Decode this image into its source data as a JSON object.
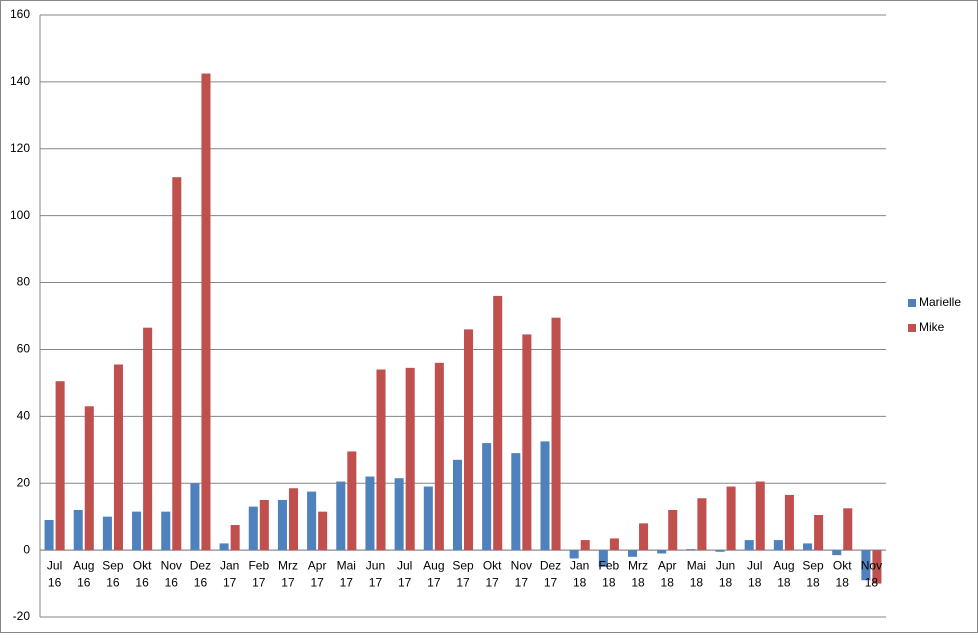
{
  "chart_data": {
    "type": "bar",
    "categories": [
      [
        "Jul",
        "16"
      ],
      [
        "Aug",
        "16"
      ],
      [
        "Sep",
        "16"
      ],
      [
        "Okt",
        "16"
      ],
      [
        "Nov",
        "16"
      ],
      [
        "Dez",
        "16"
      ],
      [
        "Jan",
        "17"
      ],
      [
        "Feb",
        "17"
      ],
      [
        "Mrz",
        "17"
      ],
      [
        "Apr",
        "17"
      ],
      [
        "Mai",
        "17"
      ],
      [
        "Jun",
        "17"
      ],
      [
        "Jul",
        "17"
      ],
      [
        "Aug",
        "17"
      ],
      [
        "Sep",
        "17"
      ],
      [
        "Okt",
        "17"
      ],
      [
        "Nov",
        "17"
      ],
      [
        "Dez",
        "17"
      ],
      [
        "Jan",
        "18"
      ],
      [
        "Feb",
        "18"
      ],
      [
        "Mrz",
        "18"
      ],
      [
        "Apr",
        "18"
      ],
      [
        "Mai",
        "18"
      ],
      [
        "Jun",
        "18"
      ],
      [
        "Jul",
        "18"
      ],
      [
        "Aug",
        "18"
      ],
      [
        "Sep",
        "18"
      ],
      [
        "Okt",
        "18"
      ],
      [
        "Nov",
        "18"
      ]
    ],
    "series": [
      {
        "name": "Marielle",
        "color": "#4f81bd",
        "values": [
          9,
          12,
          10,
          11.5,
          11.5,
          20,
          2,
          13,
          15,
          17.5,
          20.5,
          22,
          21.5,
          19,
          27,
          32,
          29,
          32.5,
          -2.5,
          -5,
          -2,
          -1,
          0.3,
          -0.5,
          3,
          3,
          2,
          -1.5,
          -9
        ]
      },
      {
        "name": "Mike",
        "color": "#c0504d",
        "values": [
          50.5,
          43,
          55.5,
          66.5,
          111.5,
          142.5,
          7.5,
          15,
          18.5,
          11.5,
          29.5,
          54,
          54.5,
          56,
          66,
          76,
          64.5,
          69.5,
          3,
          3.5,
          8,
          12,
          15.5,
          19,
          20.5,
          16.5,
          10.5,
          12.5,
          -10
        ]
      }
    ],
    "ylim": [
      -20,
      160
    ],
    "yticks": [
      -20,
      0,
      20,
      40,
      60,
      80,
      100,
      120,
      140,
      160
    ],
    "grid": true,
    "legend": "right"
  }
}
